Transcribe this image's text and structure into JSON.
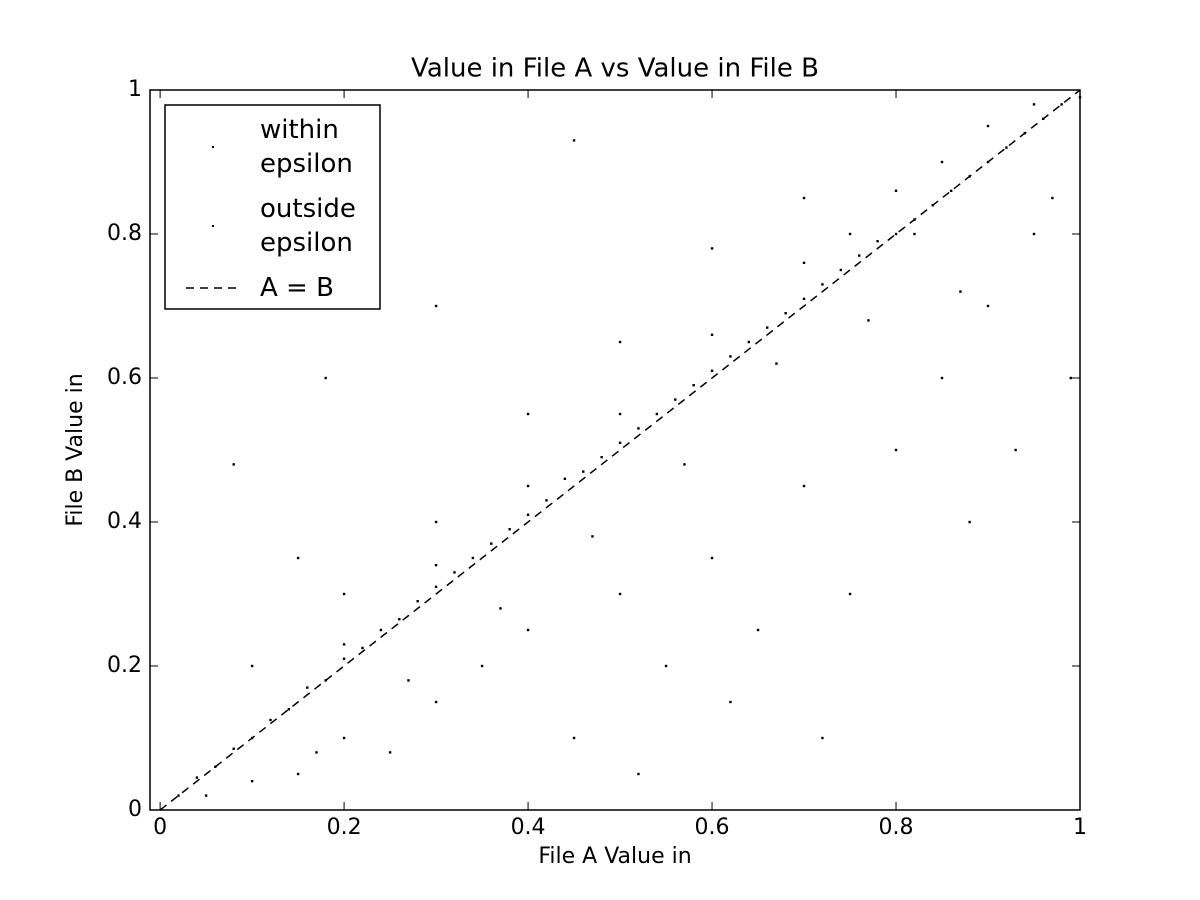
{
  "chart_data": {
    "type": "scatter",
    "title": "Value in File A vs Value in File B",
    "x_label": "File A Value in",
    "y_label": "File B Value in",
    "xlim": [
      -0.011,
      1
    ],
    "ylim": [
      0,
      1
    ],
    "xticks": [
      0,
      0.2,
      0.4,
      0.6,
      0.8,
      1
    ],
    "yticks": [
      0,
      0.2,
      0.4,
      0.6,
      0.8,
      1
    ],
    "legend": "upper left",
    "series": [
      {
        "name": "within epsilon",
        "color": "#000000",
        "kind": "points",
        "x": [
          0.02,
          0.04,
          0.06,
          0.08,
          0.1,
          0.12,
          0.14,
          0.16,
          0.18,
          0.2,
          0.22,
          0.24,
          0.26,
          0.28,
          0.3,
          0.32,
          0.34,
          0.36,
          0.38,
          0.4,
          0.42,
          0.44,
          0.46,
          0.48,
          0.5,
          0.52,
          0.54,
          0.56,
          0.58,
          0.6,
          0.62,
          0.64,
          0.66,
          0.68,
          0.7,
          0.72,
          0.74,
          0.76,
          0.78,
          0.8,
          0.82,
          0.84,
          0.86,
          0.88,
          0.9,
          0.92,
          0.94,
          0.96,
          0.98,
          1,
          0.3,
          0.5,
          0.7,
          0.8,
          0.9,
          0.95,
          0.6,
          0.4,
          0.2,
          0.85,
          0.75
        ],
        "values": [
          0.02,
          0.045,
          0.06,
          0.085,
          0.1,
          0.125,
          0.14,
          0.17,
          0.18,
          0.21,
          0.225,
          0.25,
          0.265,
          0.29,
          0.31,
          0.33,
          0.35,
          0.37,
          0.39,
          0.41,
          0.43,
          0.46,
          0.47,
          0.49,
          0.51,
          0.53,
          0.55,
          0.57,
          0.59,
          0.61,
          0.63,
          0.65,
          0.67,
          0.69,
          0.71,
          0.73,
          0.75,
          0.77,
          0.79,
          0.8,
          0.82,
          0.84,
          0.86,
          0.88,
          0.9,
          0.92,
          0.94,
          0.96,
          0.98,
          0.99,
          0.34,
          0.55,
          0.76,
          0.86,
          0.95,
          0.98,
          0.66,
          0.45,
          0.23,
          0.9,
          0.8
        ]
      },
      {
        "name": "outside epsilon",
        "color": "#000000",
        "kind": "points",
        "x": [
          0.05,
          0.1,
          0.15,
          0.2,
          0.25,
          0.3,
          0.35,
          0.4,
          0.45,
          0.5,
          0.55,
          0.6,
          0.65,
          0.7,
          0.75,
          0.8,
          0.85,
          0.9,
          0.95,
          0.72,
          0.62,
          0.52,
          0.88,
          0.93,
          0.3,
          0.2,
          0.1,
          0.15,
          0.4,
          0.5,
          0.6,
          0.7,
          0.08,
          0.18,
          0.3,
          0.45,
          0.97,
          0.99,
          0.82,
          0.67,
          0.57,
          0.47,
          0.37,
          0.27,
          0.17,
          0.77,
          0.87
        ],
        "values": [
          0.02,
          0.04,
          0.05,
          0.1,
          0.08,
          0.15,
          0.2,
          0.25,
          0.1,
          0.3,
          0.2,
          0.35,
          0.25,
          0.45,
          0.3,
          0.5,
          0.6,
          0.7,
          0.8,
          0.1,
          0.15,
          0.05,
          0.4,
          0.5,
          0.4,
          0.3,
          0.2,
          0.35,
          0.55,
          0.65,
          0.78,
          0.85,
          0.48,
          0.6,
          0.7,
          0.93,
          0.85,
          0.6,
          0.8,
          0.62,
          0.48,
          0.38,
          0.28,
          0.18,
          0.08,
          0.68,
          0.72
        ]
      },
      {
        "name": "A = B",
        "color": "#000000",
        "kind": "dashed-line",
        "x": [
          0,
          1
        ],
        "values": [
          0,
          1
        ]
      }
    ]
  }
}
